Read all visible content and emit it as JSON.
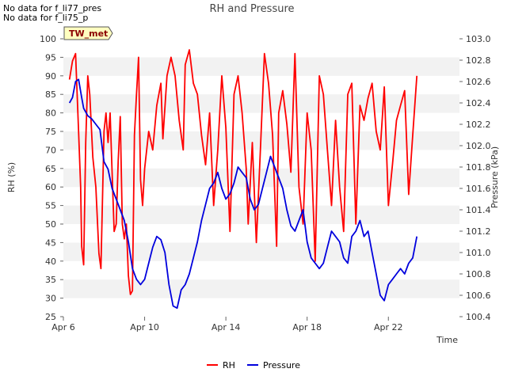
{
  "notes": [
    "No data for f_li77_pres",
    "No data for f_li75_p"
  ],
  "badge": "TW_met",
  "colors": {
    "rh": "#ff0000",
    "pressure": "#0000dd",
    "band": "#f2f2f2",
    "badge_bg": "#ffffc0",
    "badge_text": "#8b0000"
  },
  "chart_data": {
    "type": "line",
    "title": "RH and Pressure",
    "xlabel": "Time",
    "ylabel_left": "RH (%)",
    "ylabel_right": "Pressure (kPa)",
    "xlim": [
      0,
      19.5
    ],
    "ylim_left": [
      25,
      100
    ],
    "ylim_right": [
      100.4,
      103.0
    ],
    "x_ticks": [
      {
        "value": 0,
        "label": "Apr 6"
      },
      {
        "value": 4,
        "label": "Apr 10"
      },
      {
        "value": 8,
        "label": "Apr 14"
      },
      {
        "value": 12,
        "label": "Apr 18"
      },
      {
        "value": 16,
        "label": "Apr 22"
      }
    ],
    "y_ticks_left": [
      25,
      30,
      35,
      40,
      45,
      50,
      55,
      60,
      65,
      70,
      75,
      80,
      85,
      90,
      95,
      100
    ],
    "y_ticks_right": [
      100.4,
      100.6,
      100.8,
      101.0,
      101.2,
      101.4,
      101.6,
      101.8,
      102.0,
      102.2,
      102.4,
      102.6,
      102.8,
      103.0
    ],
    "legend": "bottom-center",
    "grid": "alternating-bands",
    "series": [
      {
        "name": "RH",
        "axis": "left",
        "x": [
          0.3,
          0.45,
          0.6,
          0.75,
          0.85,
          0.9,
          1.0,
          1.1,
          1.2,
          1.3,
          1.45,
          1.6,
          1.75,
          1.85,
          2.0,
          2.1,
          2.2,
          2.3,
          2.4,
          2.5,
          2.6,
          2.7,
          2.8,
          2.9,
          3.0,
          3.1,
          3.2,
          3.3,
          3.4,
          3.5,
          3.6,
          3.7,
          3.8,
          3.9,
          4.0,
          4.2,
          4.4,
          4.6,
          4.8,
          4.9,
          5.1,
          5.3,
          5.5,
          5.7,
          5.9,
          6.0,
          6.2,
          6.4,
          6.6,
          6.8,
          7.0,
          7.2,
          7.4,
          7.6,
          7.8,
          8.0,
          8.2,
          8.4,
          8.6,
          8.8,
          9.0,
          9.1,
          9.3,
          9.5,
          9.7,
          9.9,
          10.1,
          10.3,
          10.5,
          10.6,
          10.8,
          11.0,
          11.2,
          11.4,
          11.6,
          11.8,
          12.0,
          12.2,
          12.4,
          12.6,
          12.8,
          13.0,
          13.2,
          13.4,
          13.6,
          13.8,
          14.0,
          14.2,
          14.4,
          14.6,
          14.8,
          15.0,
          15.2,
          15.4,
          15.6,
          15.8,
          16.0,
          16.2,
          16.4,
          16.6,
          16.8,
          17.0,
          17.2,
          17.4
        ],
        "values": [
          89,
          94,
          96,
          75,
          60,
          44,
          39,
          72,
          90,
          85,
          68,
          60,
          42,
          38,
          75,
          80,
          72,
          80,
          64,
          48,
          50,
          67,
          79,
          50,
          46,
          50,
          36,
          31,
          32,
          74,
          85,
          95,
          62,
          55,
          65,
          75,
          70,
          82,
          88,
          73,
          90,
          95,
          90,
          78,
          70,
          93,
          97,
          88,
          85,
          74,
          66,
          80,
          55,
          70,
          90,
          76,
          48,
          85,
          90,
          80,
          65,
          50,
          72,
          45,
          70,
          96,
          88,
          74,
          44,
          80,
          86,
          77,
          64,
          96,
          60,
          50,
          80,
          70,
          40,
          90,
          85,
          70,
          55,
          78,
          60,
          48,
          85,
          88,
          50,
          82,
          78,
          84,
          88,
          75,
          70,
          87,
          55,
          66,
          78,
          82,
          86,
          58,
          74,
          90
        ]
      },
      {
        "name": "Pressure",
        "axis": "right",
        "x": [
          0.3,
          0.45,
          0.6,
          0.75,
          0.9,
          1.0,
          1.2,
          1.4,
          1.6,
          1.8,
          2.0,
          2.2,
          2.4,
          2.6,
          2.8,
          3.0,
          3.2,
          3.4,
          3.6,
          3.8,
          4.0,
          4.2,
          4.4,
          4.6,
          4.8,
          5.0,
          5.2,
          5.4,
          5.6,
          5.8,
          6.0,
          6.2,
          6.4,
          6.6,
          6.8,
          7.0,
          7.2,
          7.4,
          7.6,
          7.8,
          8.0,
          8.2,
          8.4,
          8.6,
          8.8,
          9.0,
          9.2,
          9.4,
          9.6,
          9.8,
          10.0,
          10.2,
          10.4,
          10.6,
          10.8,
          11.0,
          11.2,
          11.4,
          11.6,
          11.8,
          12.0,
          12.2,
          12.4,
          12.6,
          12.8,
          13.0,
          13.2,
          13.4,
          13.6,
          13.8,
          14.0,
          14.2,
          14.4,
          14.6,
          14.8,
          15.0,
          15.2,
          15.4,
          15.6,
          15.8,
          16.0,
          16.2,
          16.4,
          16.6,
          16.8,
          17.0,
          17.2,
          17.4
        ],
        "values": [
          102.4,
          102.45,
          102.6,
          102.62,
          102.45,
          102.35,
          102.28,
          102.25,
          102.2,
          102.15,
          101.85,
          101.78,
          101.6,
          101.5,
          101.4,
          101.3,
          101.1,
          100.85,
          100.75,
          100.7,
          100.75,
          100.9,
          101.05,
          101.15,
          101.12,
          101.0,
          100.7,
          100.5,
          100.48,
          100.65,
          100.7,
          100.8,
          100.95,
          101.1,
          101.3,
          101.45,
          101.6,
          101.65,
          101.75,
          101.6,
          101.5,
          101.55,
          101.65,
          101.8,
          101.75,
          101.7,
          101.5,
          101.4,
          101.45,
          101.6,
          101.75,
          101.9,
          101.8,
          101.7,
          101.6,
          101.4,
          101.25,
          101.2,
          101.3,
          101.4,
          101.1,
          100.95,
          100.9,
          100.85,
          100.9,
          101.05,
          101.2,
          101.15,
          101.1,
          100.95,
          100.9,
          101.15,
          101.2,
          101.3,
          101.15,
          101.2,
          101.0,
          100.8,
          100.6,
          100.55,
          100.7,
          100.75,
          100.8,
          100.85,
          100.8,
          100.9,
          100.95,
          101.15
        ]
      }
    ]
  }
}
